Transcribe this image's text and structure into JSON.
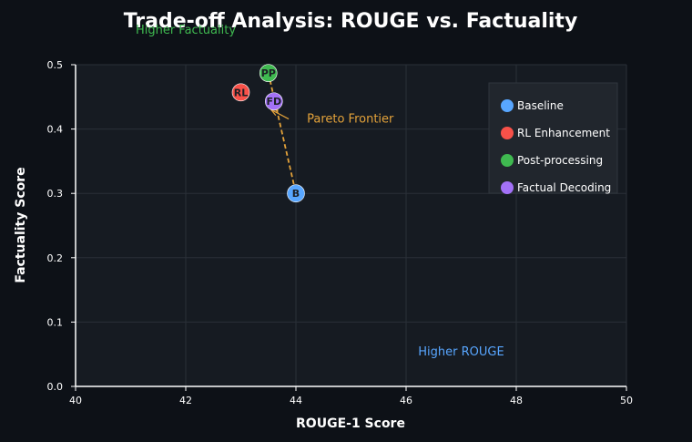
{
  "chart_data": {
    "type": "scatter",
    "title": "Trade-off Analysis: ROUGE vs. Factuality",
    "xlabel": "ROUGE-1 Score",
    "ylabel": "Factuality Score",
    "xlim": [
      40,
      50
    ],
    "ylim": [
      0,
      0.5
    ],
    "xticks": [
      "40",
      "42",
      "44",
      "46",
      "48",
      "50"
    ],
    "yticks": [
      "0.0",
      "0.1",
      "0.2",
      "0.3",
      "0.4",
      "0.5"
    ],
    "grid": true,
    "legend_position": "upper-right",
    "series": [
      {
        "name": "Baseline",
        "color": "#58a6ff",
        "points": [
          {
            "x": 44.0,
            "y": 0.3,
            "label": "B"
          }
        ]
      },
      {
        "name": "RL Enhancement",
        "color": "#f85149",
        "points": [
          {
            "x": 43.0,
            "y": 0.457,
            "label": "RL"
          }
        ]
      },
      {
        "name": "Post-processing",
        "color": "#3fb950",
        "points": [
          {
            "x": 43.5,
            "y": 0.487,
            "label": "PP"
          }
        ]
      },
      {
        "name": "Factual Decoding",
        "color": "#a371f7",
        "points": [
          {
            "x": 43.6,
            "y": 0.443,
            "label": "FD"
          }
        ]
      }
    ],
    "frontier": {
      "color": "#e3a23a",
      "points": [
        {
          "x": 43.5,
          "y": 0.487
        },
        {
          "x": 44.0,
          "y": 0.3
        }
      ]
    },
    "annotations": [
      {
        "text": "Pareto Frontier",
        "color": "#e3a23a",
        "x": 44.2,
        "y": 0.41,
        "arrow_to": {
          "x": 43.55,
          "y": 0.43
        }
      },
      {
        "text": "Higher Factuality",
        "color": "#3fb950",
        "x": 42.0,
        "y": 0.548
      },
      {
        "text": "Higher ROUGE",
        "color": "#58a6ff",
        "x": 47.0,
        "y": 0.048
      }
    ]
  }
}
